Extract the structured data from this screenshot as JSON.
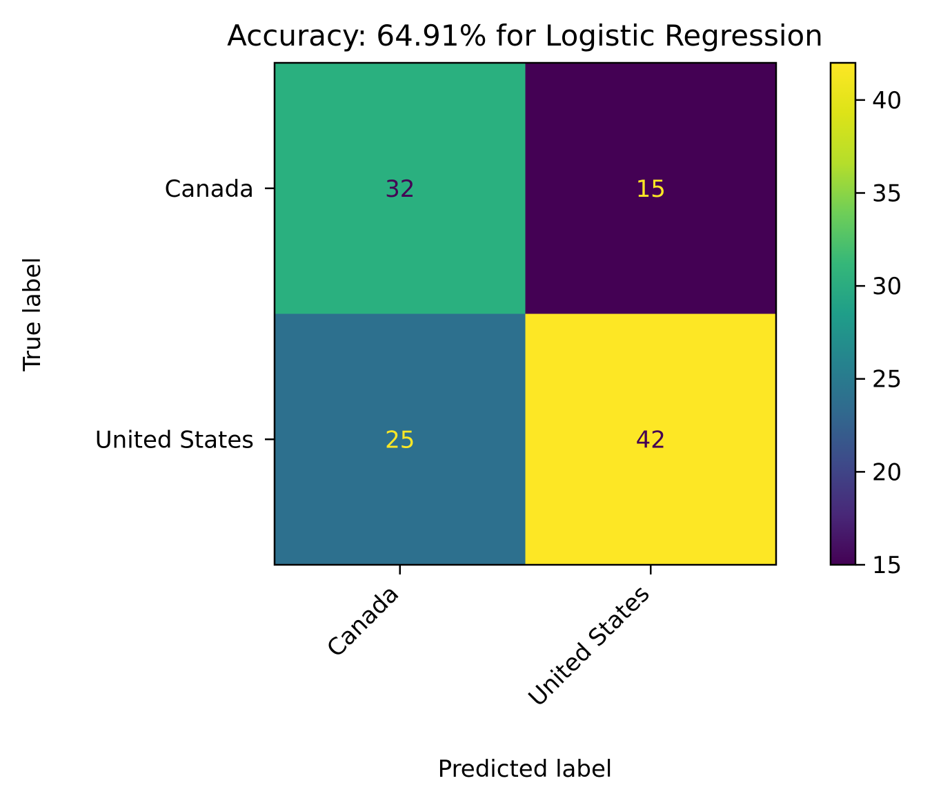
{
  "chart_data": {
    "type": "heatmap",
    "title": "Accuracy: 64.91% for Logistic Regression",
    "xlabel": "Predicted label",
    "ylabel": "True label",
    "x_categories": [
      "Canada",
      "United States"
    ],
    "y_categories": [
      "Canada",
      "United States"
    ],
    "values": [
      [
        32,
        15
      ],
      [
        25,
        42
      ]
    ],
    "colormap": "viridis",
    "color_range": [
      15,
      42
    ],
    "colorbar_ticks": [
      15,
      20,
      25,
      30,
      35,
      40
    ],
    "text_colors": {
      "on_dark": "#fde725",
      "on_light": "#440154"
    },
    "cell_colors": [
      [
        "#2ab07f",
        "#440154"
      ],
      [
        "#2d708e",
        "#fde725"
      ]
    ],
    "grid": false
  }
}
